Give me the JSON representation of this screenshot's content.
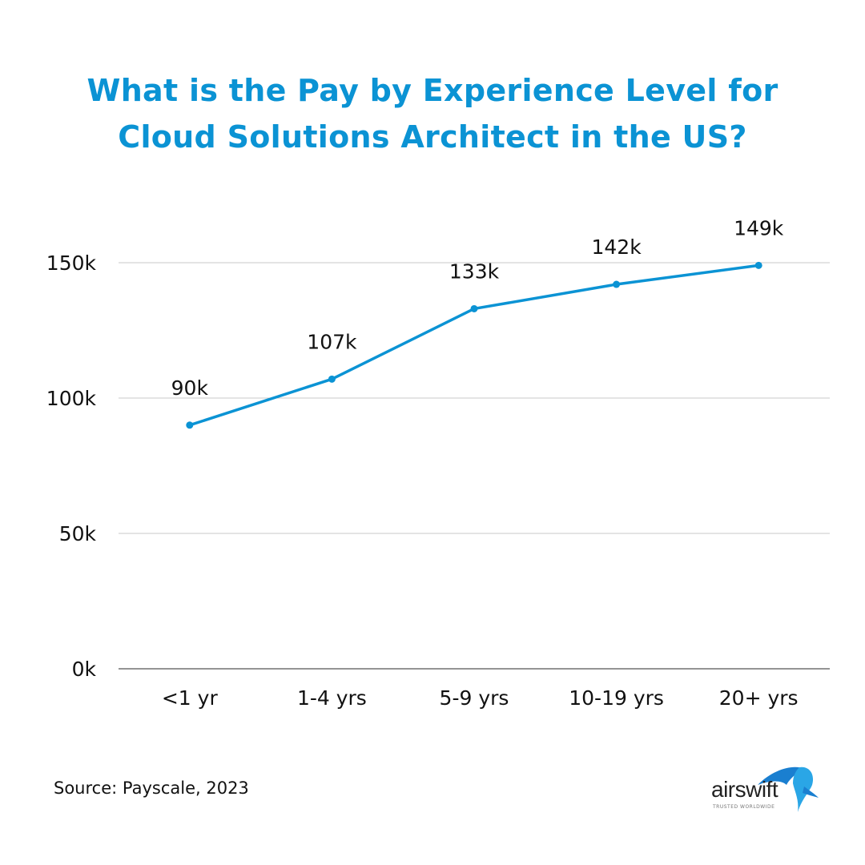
{
  "title_line1": "What is the Pay by Experience Level for",
  "title_line2": "Cloud Solutions Architect in the US?",
  "source": "Source: Payscale, 2023",
  "logo": {
    "text": "airswift",
    "tagline": "TRUSTED WORLDWIDE"
  },
  "colors": {
    "accent": "#0b93d4",
    "grid": "#c8c8c8"
  },
  "chart_data": {
    "type": "line",
    "title": "What is the Pay by Experience Level for Cloud Solutions Architect in the US?",
    "categories": [
      "<1 yr",
      "1-4 yrs",
      "5-9 yrs",
      "10-19 yrs",
      "20+ yrs"
    ],
    "values": [
      90,
      107,
      133,
      142,
      149
    ],
    "data_labels": [
      "90k",
      "107k",
      "133k",
      "142k",
      "149k"
    ],
    "unit": "k",
    "yticks": [
      0,
      50,
      100,
      150
    ],
    "ytick_labels": [
      "0k",
      "50k",
      "100k",
      "150k"
    ],
    "ylim": [
      0,
      150
    ],
    "grid": true,
    "legend": "none",
    "color": "#0b93d4"
  }
}
